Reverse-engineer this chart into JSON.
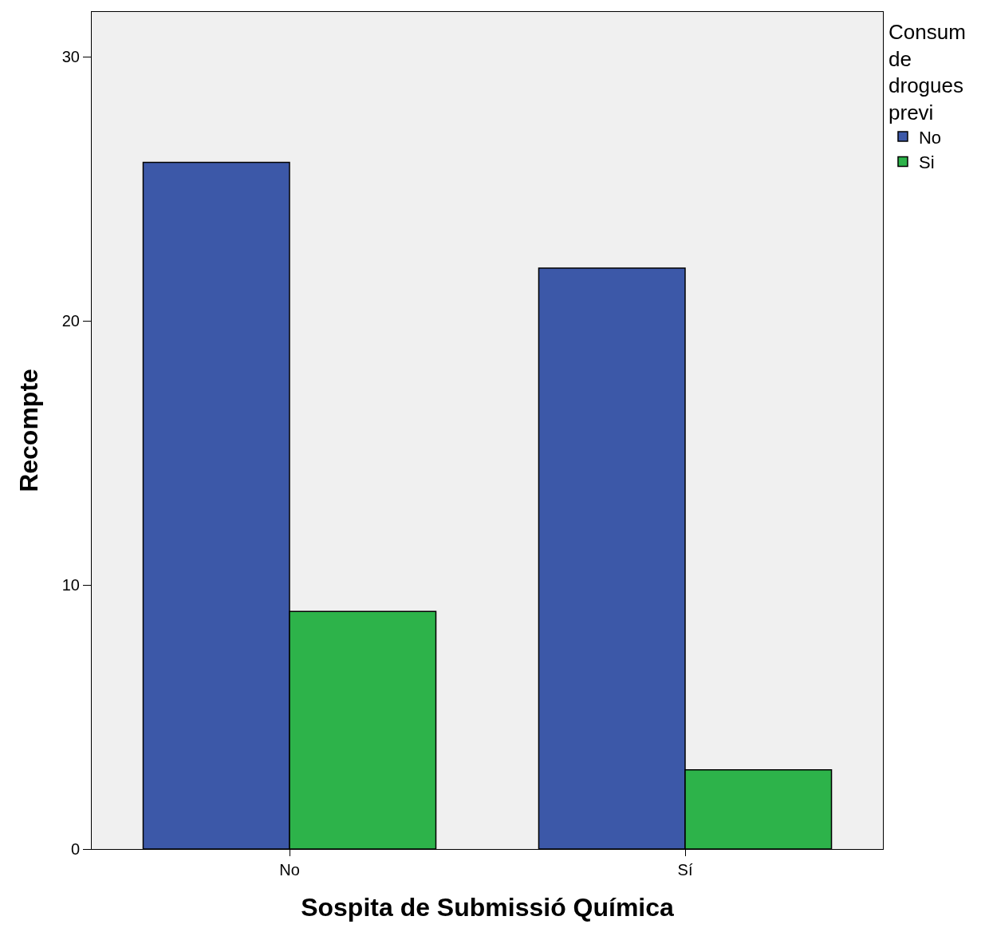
{
  "chart_data": {
    "type": "bar",
    "xlabel": "Sospita de Submissió Química",
    "ylabel": "Recompte",
    "legend_title": "Consum de drogues previ",
    "categories": [
      "No",
      "Sí"
    ],
    "series": [
      {
        "name": "No",
        "color": "#3c58a8",
        "values": [
          26,
          22
        ]
      },
      {
        "name": "Si",
        "color": "#2db34a",
        "values": [
          9,
          3
        ]
      }
    ],
    "ylim": [
      0,
      31.7
    ],
    "yticks": [
      0,
      10,
      20,
      30
    ],
    "grid": false,
    "legend": "top right"
  }
}
